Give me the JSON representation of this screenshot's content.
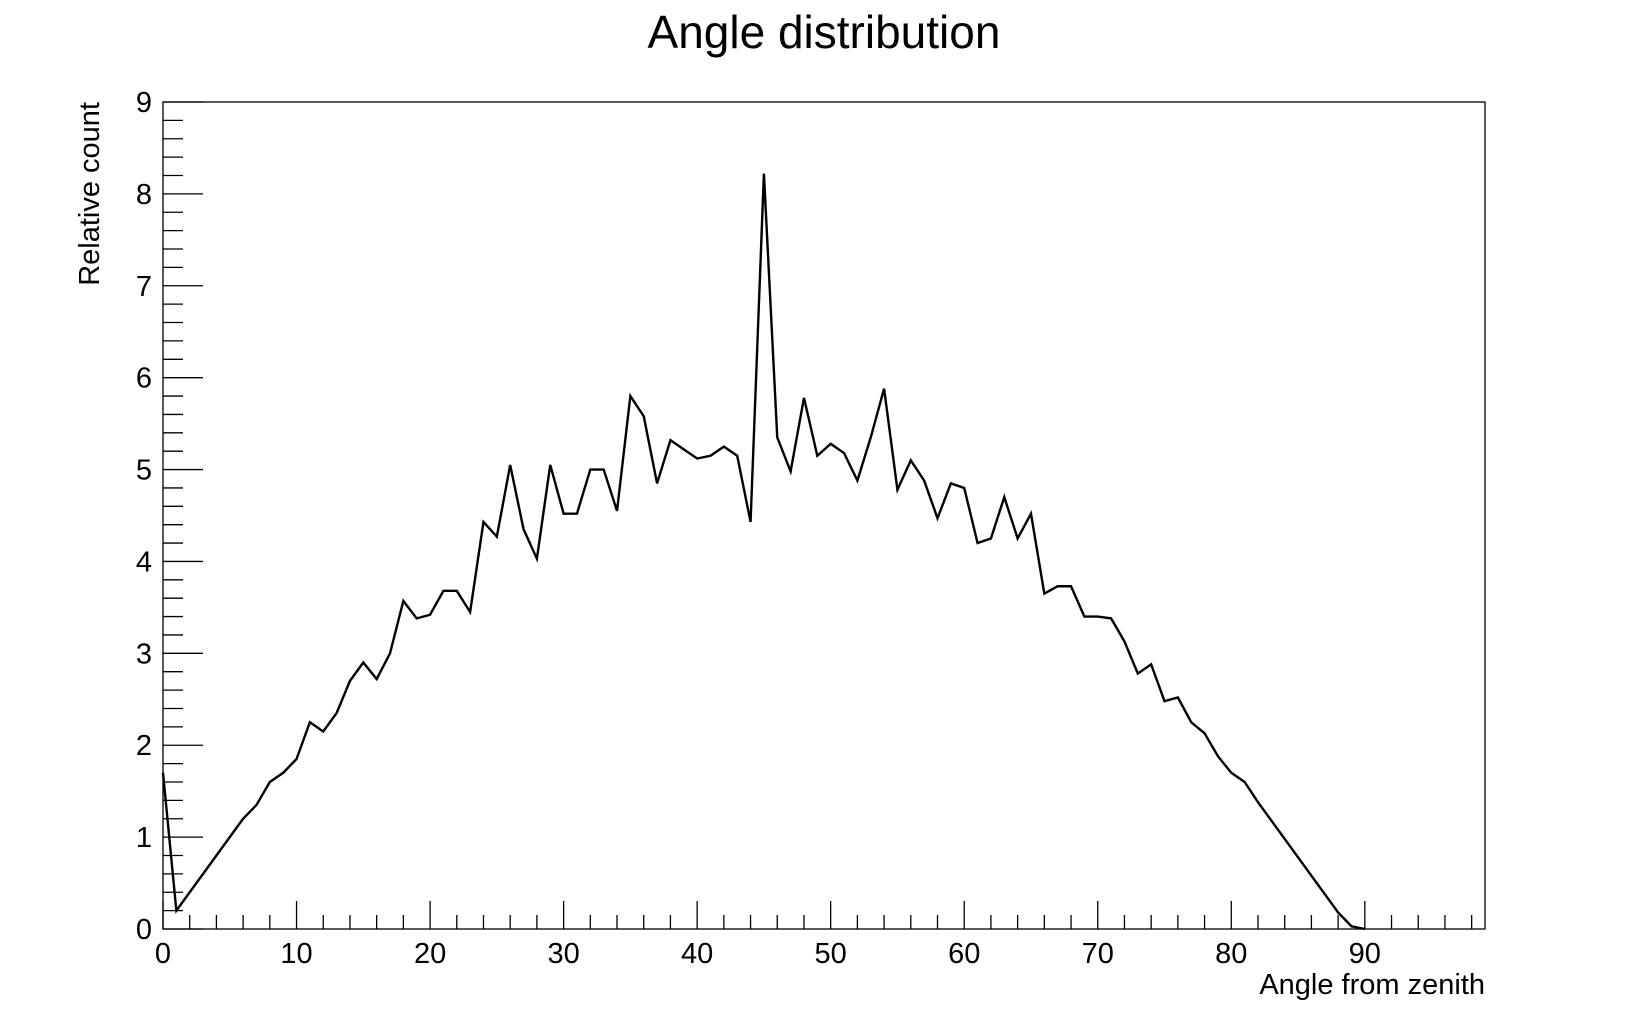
{
  "chart_data": {
    "type": "line",
    "title": "Angle distribution",
    "xlabel": "Angle from zenith",
    "ylabel": "Relative count",
    "xlim": [
      0,
      99
    ],
    "ylim": [
      0,
      9
    ],
    "x_ticks": [
      0,
      10,
      20,
      30,
      40,
      50,
      60,
      70,
      80,
      90
    ],
    "y_ticks": [
      0,
      1,
      2,
      3,
      4,
      5,
      6,
      7,
      8,
      9
    ],
    "grid": false,
    "legend": "none",
    "line_color": "#000000",
    "series": [
      {
        "x": [
          0,
          1,
          2,
          3,
          4,
          5,
          6,
          7,
          8,
          9,
          10,
          11,
          12,
          13,
          14,
          15,
          16,
          17,
          18,
          19,
          20,
          21,
          22,
          23,
          24,
          25,
          26,
          27,
          28,
          29,
          30,
          31,
          32,
          33,
          34,
          35,
          36,
          37,
          38,
          39,
          40,
          41,
          42,
          43,
          44,
          45,
          46,
          47,
          48,
          49,
          50,
          51,
          52,
          53,
          54,
          55,
          56,
          57,
          58,
          59,
          60,
          61,
          62,
          63,
          64,
          65,
          66,
          67,
          68,
          69,
          70,
          71,
          72,
          73,
          74,
          75,
          76,
          77,
          78,
          79,
          80,
          81,
          82,
          83,
          84,
          85,
          86,
          87,
          88,
          89,
          90
        ],
        "y": [
          1.7,
          0.2,
          0.4,
          0.6,
          0.8,
          1.0,
          1.2,
          1.35,
          1.6,
          1.7,
          1.85,
          2.25,
          2.15,
          2.35,
          2.7,
          2.9,
          2.72,
          3.0,
          3.57,
          3.38,
          3.42,
          3.68,
          3.68,
          3.45,
          4.43,
          4.27,
          5.05,
          4.35,
          4.03,
          5.05,
          4.52,
          4.52,
          5.0,
          5.0,
          4.55,
          5.8,
          5.58,
          4.85,
          5.32,
          5.22,
          5.12,
          5.15,
          5.25,
          5.15,
          4.43,
          8.22,
          5.35,
          4.98,
          5.78,
          5.15,
          5.28,
          5.18,
          4.88,
          5.35,
          5.88,
          4.78,
          5.1,
          4.88,
          4.47,
          4.85,
          4.8,
          4.2,
          4.25,
          4.7,
          4.25,
          4.52,
          3.65,
          3.73,
          3.73,
          3.4,
          3.4,
          3.38,
          3.13,
          2.78,
          2.88,
          2.48,
          2.52,
          2.25,
          2.13,
          1.88,
          1.7,
          1.6,
          1.38,
          1.18,
          0.98,
          0.78,
          0.58,
          0.38,
          0.18,
          0.03,
          0.0
        ]
      }
    ]
  }
}
